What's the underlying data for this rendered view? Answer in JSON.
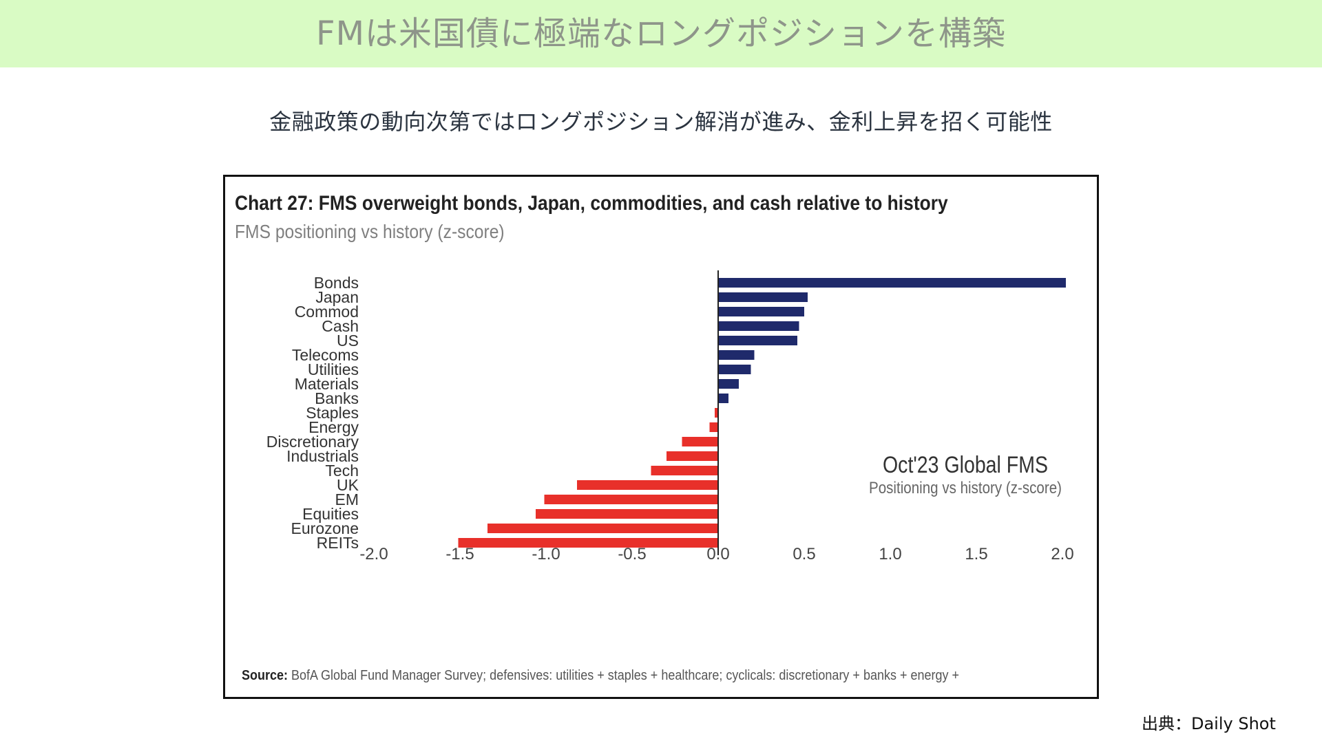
{
  "header": {
    "title": "FMは米国債に極端なロングポジションを構築"
  },
  "subtitle": "金融政策の動向次第ではロングポジション解消が進み、金利上昇を招く可能性",
  "credit": "出典：Daily Shot",
  "colors": {
    "header_band": "#d9fbc4",
    "positive_bar": "#1f2a6b",
    "negative_bar": "#e8302a"
  },
  "chart_data": {
    "type": "bar",
    "orientation": "horizontal",
    "title": "Chart 27: FMS overweight bonds, Japan, commodities, and cash relative to history",
    "subtitle": "FMS positioning vs history (z-score)",
    "annotation_title": "Oct'23 Global FMS",
    "annotation_subtitle": "Positioning vs history (z-score)",
    "source_label": "Source:",
    "source_text": "BofA Global Fund Manager Survey; defensives: utilities + staples + healthcare; cyclicals: discretionary + banks + energy +",
    "categories": [
      "Bonds",
      "Japan",
      "Commod",
      "Cash",
      "US",
      "Telecoms",
      "Utilities",
      "Materials",
      "Banks",
      "Staples",
      "Energy",
      "Discretionary",
      "Industrials",
      "Tech",
      "UK",
      "EM",
      "Equities",
      "Eurozone",
      "REITs"
    ],
    "values": [
      2.02,
      0.52,
      0.5,
      0.47,
      0.46,
      0.21,
      0.19,
      0.12,
      0.06,
      -0.02,
      -0.05,
      -0.21,
      -0.3,
      -0.39,
      -0.82,
      -1.01,
      -1.06,
      -1.34,
      -1.51
    ],
    "xlim": [
      -2.0,
      2.0
    ],
    "xticks": [
      "-2.0",
      "-1.5",
      "-1.0",
      "-0.5",
      "0.0",
      "0.5",
      "1.0",
      "1.5",
      "2.0"
    ],
    "grid": false,
    "legend": "none"
  }
}
